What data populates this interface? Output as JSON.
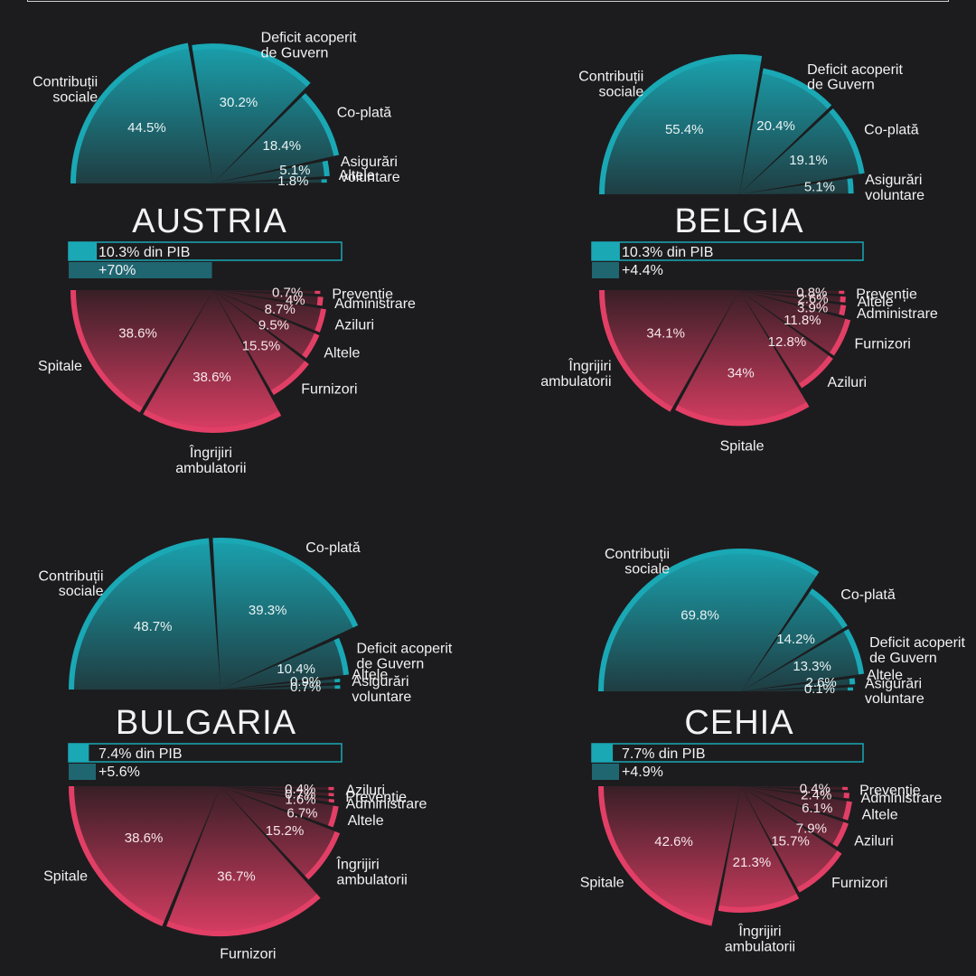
{
  "colors": {
    "background": "#1c1c1e",
    "funding": "#1aa8b5",
    "funding_dark": "#1f3f44",
    "spending": "#e23f66",
    "spending_dark": "#3a1f27",
    "text": "#f2f2f2",
    "bar_fill": "#1aa8b5",
    "bar_change": "#1f6670"
  },
  "chart_data": [
    {
      "type": "pie",
      "country": "AUSTRIA",
      "gdp_label": "10.3% din PIB",
      "gdp_share": 10.3,
      "change_label": "+70%",
      "change_value": 70,
      "funding": [
        {
          "label": [
            "Contribuții",
            "sociale"
          ],
          "value": 44.5,
          "value_label": "44.5%"
        },
        {
          "label": [
            "Deficit acoperit",
            "de Guvern"
          ],
          "value": 30.2,
          "value_label": "30.2%"
        },
        {
          "label": [
            "Co-plată"
          ],
          "value": 18.4,
          "value_label": "18.4%"
        },
        {
          "label": [
            "Asigurări",
            "voluntare"
          ],
          "value": 5.1,
          "value_label": "5.1%"
        },
        {
          "label": [
            "Altele"
          ],
          "value": 1.8,
          "value_label": "1.8%"
        }
      ],
      "spending": [
        {
          "label": [
            "Spitale"
          ],
          "value": 38.6,
          "value_label": "38.6%"
        },
        {
          "label": [
            "Îngrijiri",
            "ambulatorii"
          ],
          "value": 38.6,
          "value_label": "38.6%"
        },
        {
          "label": [
            "Furnizori"
          ],
          "value": 15.5,
          "value_label": "15.5%"
        },
        {
          "label": [
            "Altele"
          ],
          "value": 9.5,
          "value_label": "9.5%"
        },
        {
          "label": [
            "Aziluri"
          ],
          "value": 8.7,
          "value_label": "8.7%"
        },
        {
          "label": [
            "Administrare"
          ],
          "value": 4,
          "value_label": "4%"
        },
        {
          "label": [
            "Prevenție"
          ],
          "value": 0.7,
          "value_label": "0.7%"
        }
      ]
    },
    {
      "type": "pie",
      "country": "BELGIA",
      "gdp_label": "10.3% din PIB",
      "gdp_share": 10.3,
      "change_label": "+4.4%",
      "change_value": 4.4,
      "funding": [
        {
          "label": [
            "Contribuții",
            "sociale"
          ],
          "value": 55.4,
          "value_label": "55.4%"
        },
        {
          "label": [
            "Deficit acoperit",
            "de Guvern"
          ],
          "value": 20.4,
          "value_label": "20.4%"
        },
        {
          "label": [
            "Co-plată"
          ],
          "value": 19.1,
          "value_label": "19.1%"
        },
        {
          "label": [
            "Asigurări",
            "voluntare"
          ],
          "value": 5.1,
          "value_label": "5.1%"
        }
      ],
      "spending": [
        {
          "label": [
            "Îngrijiri",
            "ambulatorii"
          ],
          "value": 34.1,
          "value_label": "34.1%"
        },
        {
          "label": [
            "Spitale"
          ],
          "value": 34,
          "value_label": "34%"
        },
        {
          "label": [
            "Aziluri"
          ],
          "value": 12.8,
          "value_label": "12.8%"
        },
        {
          "label": [
            "Furnizori"
          ],
          "value": 11.8,
          "value_label": "11.8%"
        },
        {
          "label": [
            "Administrare"
          ],
          "value": 3.9,
          "value_label": "3.9%"
        },
        {
          "label": [
            "Altele"
          ],
          "value": 2.6,
          "value_label": "2.6%"
        },
        {
          "label": [
            "Prevenție"
          ],
          "value": 0.8,
          "value_label": "0.8%"
        }
      ]
    },
    {
      "type": "pie",
      "country": "BULGARIA",
      "gdp_label": "7.4% din PIB",
      "gdp_share": 7.4,
      "change_label": "+5.6%",
      "change_value": 5.6,
      "funding": [
        {
          "label": [
            "Contribuții",
            "sociale"
          ],
          "value": 48.7,
          "value_label": "48.7%"
        },
        {
          "label": [
            "Co-plată"
          ],
          "value": 39.3,
          "value_label": "39.3%"
        },
        {
          "label": [
            "Deficit acoperit",
            "de Guvern"
          ],
          "value": 10.4,
          "value_label": "10.4%"
        },
        {
          "label": [
            "Altele"
          ],
          "value": 0.9,
          "value_label": "0.9%"
        },
        {
          "label": [
            "Asigurări",
            "voluntare"
          ],
          "value": 0.7,
          "value_label": "0.7%"
        }
      ],
      "spending": [
        {
          "label": [
            "Spitale"
          ],
          "value": 38.6,
          "value_label": "38.6%"
        },
        {
          "label": [
            "Furnizori"
          ],
          "value": 36.7,
          "value_label": "36.7%"
        },
        {
          "label": [
            "Îngrijiri",
            "ambulatorii"
          ],
          "value": 15.2,
          "value_label": "15.2%"
        },
        {
          "label": [
            "Altele"
          ],
          "value": 6.7,
          "value_label": "6.7%"
        },
        {
          "label": [
            "Administrare"
          ],
          "value": 1.6,
          "value_label": "1.6%"
        },
        {
          "label": [
            "Prevenție"
          ],
          "value": 0.7,
          "value_label": "0.7%"
        },
        {
          "label": [
            "Aziluri"
          ],
          "value": 0.4,
          "value_label": "0.4%"
        }
      ]
    },
    {
      "type": "pie",
      "country": "CEHIA",
      "gdp_label": "7.7% din PIB",
      "gdp_share": 7.7,
      "change_label": "+4.9%",
      "change_value": 4.9,
      "funding": [
        {
          "label": [
            "Contribuții",
            "sociale"
          ],
          "value": 69.8,
          "value_label": "69.8%"
        },
        {
          "label": [
            "Co-plată"
          ],
          "value": 14.2,
          "value_label": "14.2%"
        },
        {
          "label": [
            "Deficit acoperit",
            "de Guvern"
          ],
          "value": 13.3,
          "value_label": "13.3%"
        },
        {
          "label": [
            "Altele"
          ],
          "value": 2.6,
          "value_label": "2.6%"
        },
        {
          "label": [
            "Asigurări",
            "voluntare"
          ],
          "value": 0.1,
          "value_label": "0.1%"
        }
      ],
      "spending": [
        {
          "label": [
            "Spitale"
          ],
          "value": 42.6,
          "value_label": "42.6%"
        },
        {
          "label": [
            "Îngrijiri",
            "ambulatorii"
          ],
          "value": 21.3,
          "value_label": "21.3%"
        },
        {
          "label": [
            "Furnizori"
          ],
          "value": 15.7,
          "value_label": "15.7%"
        },
        {
          "label": [
            "Aziluri"
          ],
          "value": 7.9,
          "value_label": "7.9%"
        },
        {
          "label": [
            "Altele"
          ],
          "value": 6.1,
          "value_label": "6.1%"
        },
        {
          "label": [
            "Administrare"
          ],
          "value": 2.4,
          "value_label": "2.4%"
        },
        {
          "label": [
            "Prevenție"
          ],
          "value": 0.4,
          "value_label": "0.4%"
        }
      ]
    }
  ]
}
